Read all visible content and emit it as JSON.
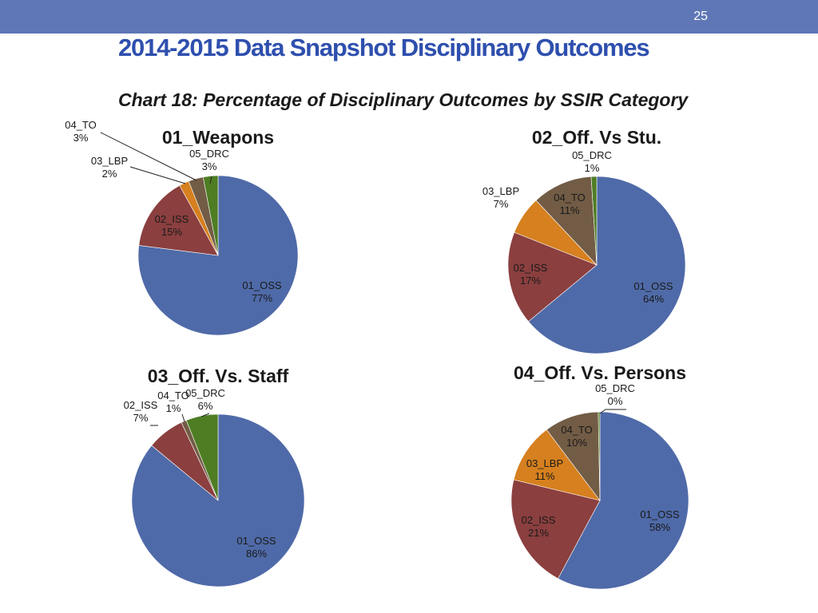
{
  "header": {
    "page_number": "25",
    "title": "2014-2015 Data Snapshot Disciplinary Outcomes",
    "subtitle": "Chart 18: Percentage of Disciplinary Outcomes by SSIR Category"
  },
  "colors": {
    "topbar": "#5f77b6",
    "title": "#2e4fae",
    "01_OSS": "#4f6aa8",
    "02_ISS": "#8b3f3f",
    "03_LBP": "#d6801f",
    "04_TO": "#725c45",
    "05_DRC": "#4e7d24"
  },
  "chart_data": [
    {
      "type": "pie",
      "title": "01_Weapons",
      "categories": [
        "01_OSS",
        "02_ISS",
        "03_LBP",
        "04_TO",
        "05_DRC"
      ],
      "values": [
        77,
        15,
        2,
        3,
        3
      ],
      "labels": [
        "77%",
        "15%",
        "2%",
        "3%",
        "3%"
      ]
    },
    {
      "type": "pie",
      "title": "02_Off. Vs Stu.",
      "categories": [
        "01_OSS",
        "02_ISS",
        "03_LBP",
        "04_TO",
        "05_DRC"
      ],
      "values": [
        64,
        17,
        7,
        11,
        1
      ],
      "labels": [
        "64%",
        "17%",
        "7%",
        "11%",
        "1%"
      ]
    },
    {
      "type": "pie",
      "title": "03_Off. Vs. Staff",
      "categories": [
        "01_OSS",
        "02_ISS",
        "04_TO",
        "05_DRC"
      ],
      "values": [
        86,
        7,
        1,
        6
      ],
      "labels": [
        "86%",
        "7%",
        "1%",
        "6%"
      ]
    },
    {
      "type": "pie",
      "title": "04_Off. Vs. Persons",
      "categories": [
        "01_OSS",
        "02_ISS",
        "03_LBP",
        "04_TO",
        "05_DRC"
      ],
      "values": [
        58,
        21,
        11,
        10,
        0.3
      ],
      "labels": [
        "58%",
        "21%",
        "11%",
        "10%",
        "0%"
      ]
    }
  ]
}
